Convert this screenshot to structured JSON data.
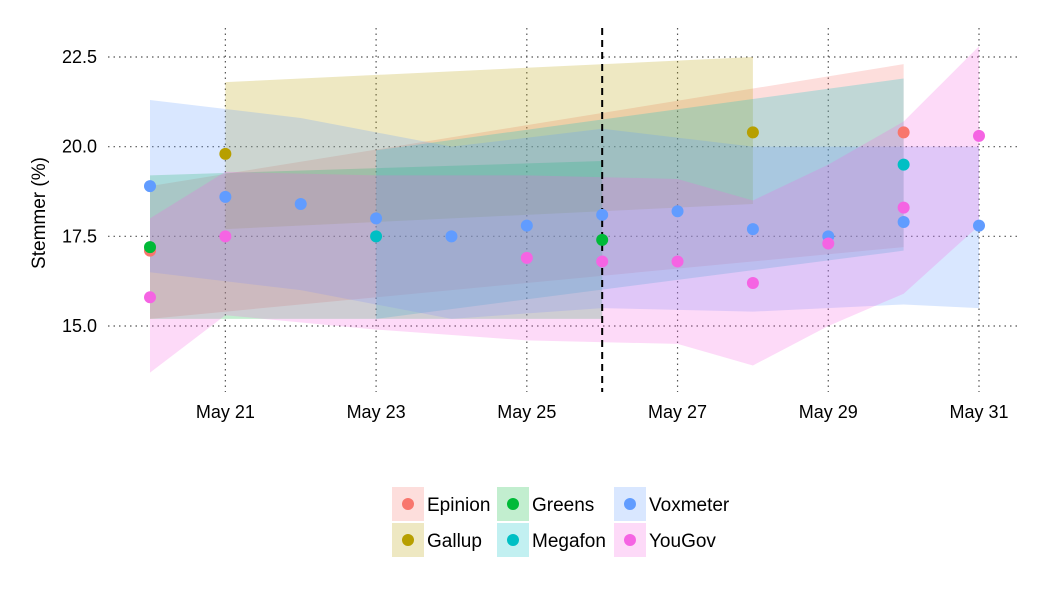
{
  "chart_data": {
    "type": "scatter",
    "title": "",
    "xlabel": "",
    "ylabel": "Stemmer (%)",
    "x_domain": [
      20,
      31
    ],
    "ylim": [
      13.5,
      23.1
    ],
    "x_ticks": [
      {
        "day": 21,
        "label": "May 21"
      },
      {
        "day": 23,
        "label": "May 23"
      },
      {
        "day": 25,
        "label": "May 25"
      },
      {
        "day": 27,
        "label": "May 27"
      },
      {
        "day": 29,
        "label": "May 29"
      },
      {
        "day": 31,
        "label": "May 31"
      }
    ],
    "y_ticks": [
      {
        "value": 15.0,
        "label": "15.0"
      },
      {
        "value": 17.5,
        "label": "17.5"
      },
      {
        "value": 20.0,
        "label": "20.0"
      },
      {
        "value": 22.5,
        "label": "22.5"
      }
    ],
    "reference_line": {
      "day": 26,
      "style": "dashed"
    },
    "grid": "dotted",
    "legend": {
      "position": "bottom",
      "entries": [
        {
          "name": "Epinion",
          "color": "#F8766D"
        },
        {
          "name": "Gallup",
          "color": "#B79F00"
        },
        {
          "name": "Greens",
          "color": "#00BA38"
        },
        {
          "name": "Megafon",
          "color": "#00BFC4"
        },
        {
          "name": "Voxmeter",
          "color": "#619CFF"
        },
        {
          "name": "YouGov",
          "color": "#F564E3"
        }
      ]
    },
    "series": [
      {
        "name": "Epinion",
        "color": "#F8766D",
        "points": [
          {
            "x": 20,
            "y": 17.1
          },
          {
            "x": 30,
            "y": 20.4
          }
        ],
        "band": {
          "x": [
            20,
            30
          ],
          "lower": [
            15.2,
            17.2
          ],
          "upper": [
            18.9,
            22.3
          ]
        }
      },
      {
        "name": "Gallup",
        "color": "#B79F00",
        "points": [
          {
            "x": 21,
            "y": 19.8
          },
          {
            "x": 28,
            "y": 20.4
          }
        ],
        "band": {
          "x": [
            21,
            28
          ],
          "lower": [
            17.7,
            18.4
          ],
          "upper": [
            21.8,
            22.5
          ]
        }
      },
      {
        "name": "Greens",
        "color": "#00BA38",
        "points": [
          {
            "x": 20,
            "y": 17.2
          },
          {
            "x": 26,
            "y": 17.4
          }
        ],
        "band": {
          "x": [
            20,
            26
          ],
          "lower": [
            15.2,
            15.2
          ],
          "upper": [
            19.2,
            19.6
          ]
        }
      },
      {
        "name": "Megafon",
        "color": "#00BFC4",
        "points": [
          {
            "x": 23,
            "y": 17.5
          },
          {
            "x": 30,
            "y": 19.5
          }
        ],
        "band": {
          "x": [
            23,
            30
          ],
          "lower": [
            15.2,
            17.1
          ],
          "upper": [
            19.9,
            21.9
          ]
        }
      },
      {
        "name": "Voxmeter",
        "color": "#619CFF",
        "points": [
          {
            "x": 20,
            "y": 18.9
          },
          {
            "x": 21,
            "y": 18.6
          },
          {
            "x": 22,
            "y": 18.4
          },
          {
            "x": 23,
            "y": 18.0
          },
          {
            "x": 24,
            "y": 17.5
          },
          {
            "x": 25,
            "y": 17.8
          },
          {
            "x": 26,
            "y": 18.1
          },
          {
            "x": 27,
            "y": 18.2
          },
          {
            "x": 28,
            "y": 17.7
          },
          {
            "x": 29,
            "y": 17.5
          },
          {
            "x": 30,
            "y": 17.9
          },
          {
            "x": 31,
            "y": 17.8
          }
        ],
        "band": {
          "x": [
            20,
            22,
            24,
            26,
            28,
            30,
            31
          ],
          "lower": [
            16.5,
            16.0,
            15.2,
            15.5,
            15.4,
            15.6,
            15.5
          ],
          "upper": [
            21.3,
            20.8,
            20.0,
            20.5,
            20.0,
            20.0,
            20.0
          ]
        }
      },
      {
        "name": "YouGov",
        "color": "#F564E3",
        "points": [
          {
            "x": 20,
            "y": 15.8
          },
          {
            "x": 21,
            "y": 17.5
          },
          {
            "x": 25,
            "y": 16.9
          },
          {
            "x": 26,
            "y": 16.8
          },
          {
            "x": 27,
            "y": 16.8
          },
          {
            "x": 28,
            "y": 16.2
          },
          {
            "x": 29,
            "y": 17.3
          },
          {
            "x": 30,
            "y": 18.3
          },
          {
            "x": 31,
            "y": 20.3
          }
        ],
        "band": {
          "x": [
            20,
            21,
            23,
            25,
            27,
            28,
            29,
            30,
            31
          ],
          "lower": [
            13.7,
            15.3,
            14.9,
            14.6,
            14.5,
            13.9,
            15.0,
            15.9,
            17.8
          ],
          "upper": [
            18.0,
            19.3,
            19.2,
            19.2,
            19.1,
            18.5,
            19.5,
            20.7,
            22.8
          ]
        }
      }
    ]
  }
}
